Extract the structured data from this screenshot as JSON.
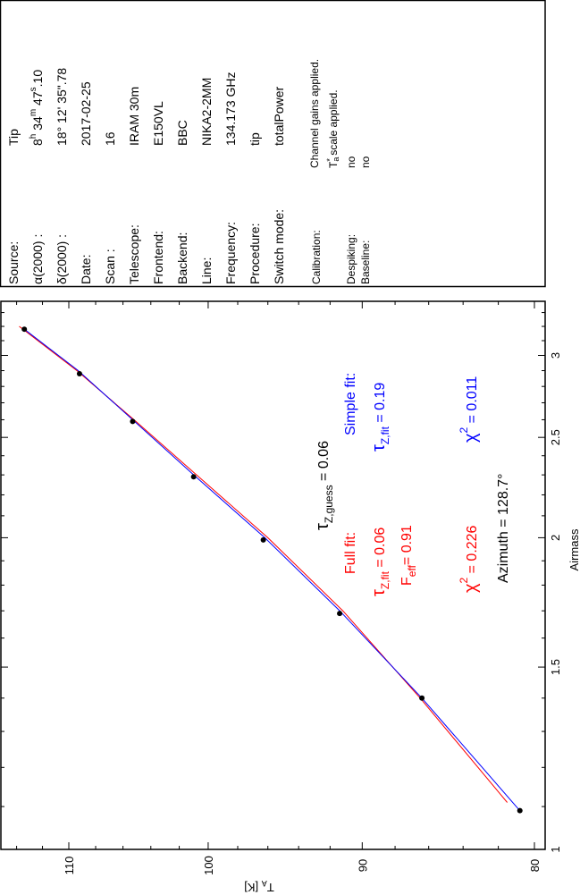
{
  "header": {
    "rows": [
      {
        "label": "Source:",
        "value": "Tip"
      },
      {
        "label": "α(2000) :",
        "value": ""
      },
      {
        "label": "δ(2000) :",
        "value": "18° 12' 35\".78"
      },
      {
        "label": "Date:",
        "value": "2017-02-25"
      },
      {
        "label": "Scan :",
        "value": "16"
      },
      {
        "label": "Telescope:",
        "value": "IRAM 30m"
      },
      {
        "label": "Frontend:",
        "value": "E150VL"
      },
      {
        "label": "Backend:",
        "value": "BBC"
      },
      {
        "label": "Line:",
        "value": "NIKA2-2MM"
      },
      {
        "label": "Frequency:",
        "value": "134.173 GHz"
      },
      {
        "label": "Procedure:",
        "value": "tip"
      },
      {
        "label": "Switch mode:",
        "value": "totalPower"
      }
    ],
    "ra_parts": {
      "h": "8",
      "h_unit": "h",
      "m": " 34",
      "m_unit": "m",
      "s": " 47",
      "s_unit": "s",
      "frac": ".10"
    },
    "calibration_label": "Calibration:",
    "calibration_line1": "Channel gains applied.",
    "calibration_ta": "T",
    "calibration_ta_sub": "a",
    "calibration_ta_sup": "*",
    "calibration_line2": " scale applied.",
    "despiking_label": "Despiking:",
    "despiking_value": "no",
    "baseline_label": "Baseline:",
    "baseline_value": "no"
  },
  "annotations": {
    "tau_guess": {
      "symbol": "τ",
      "sub": "Z,guess",
      "value": " = 0.06"
    },
    "full_fit_title": "Full fit:",
    "simple_fit_title": "Simple fit:",
    "full_tau": {
      "symbol": "τ",
      "sub": "Z,fit",
      "value": " = 0.06"
    },
    "simple_tau": {
      "symbol": "τ",
      "sub": "Z,fit",
      "value": " = 0.19"
    },
    "feff": {
      "symbol": "F",
      "sub": "eff",
      "value": "= 0.91"
    },
    "full_chi2": {
      "symbol": "χ",
      "sup": "2",
      "value": " = 0.226"
    },
    "simple_chi2": {
      "symbol": "χ",
      "sup": "2",
      "value": " = 0.011"
    },
    "azimuth": "Azimuth = 128.7°"
  },
  "colors": {
    "full_fit": "#ff0000",
    "simple_fit": "#0000ff",
    "points": "#000000"
  },
  "chart_data": {
    "type": "scatter",
    "orientation": "rotated 90° (airmass vertical, increasing upward; T_A horizontal, increasing leftward)",
    "xlabel": "Airmass",
    "ylabel_main": "T",
    "ylabel_sub": "A",
    "ylabel_unit": " [K]",
    "x_scale": "log",
    "y_scale": "log",
    "xlim": [
      1,
      3.38
    ],
    "ylim": [
      78.8,
      115.3
    ],
    "x_ticks": [
      "1",
      "1.5",
      "2",
      "2.5",
      "3"
    ],
    "x_tick_values": [
      1,
      1.5,
      2,
      2.5,
      3
    ],
    "y_ticks": [
      "80",
      "90",
      "100",
      "110"
    ],
    "y_tick_values": [
      80,
      90,
      100,
      110
    ],
    "points": {
      "airmass": [
        1.09,
        1.4,
        1.69,
        1.99,
        2.29,
        2.59,
        2.88,
        3.18
      ],
      "ta": [
        80.8,
        86.4,
        91.4,
        96.3,
        101.0,
        105.3,
        109.2,
        113.4
      ]
    },
    "series": [
      {
        "name": "Full fit",
        "color": "#ff0000",
        "airmass": [
          1.11,
          1.4,
          1.7,
          2.0,
          2.3,
          2.6,
          2.9,
          3.2
        ],
        "ta": [
          81.5,
          86.5,
          91.2,
          96.0,
          100.8,
          105.2,
          109.4,
          113.8
        ]
      },
      {
        "name": "Simple fit",
        "color": "#0000ff",
        "airmass": [
          1.09,
          1.4,
          1.7,
          2.0,
          2.3,
          2.6,
          2.9,
          3.18
        ],
        "ta": [
          80.8,
          86.4,
          91.4,
          96.2,
          101.0,
          105.3,
          109.3,
          113.4
        ]
      }
    ]
  }
}
